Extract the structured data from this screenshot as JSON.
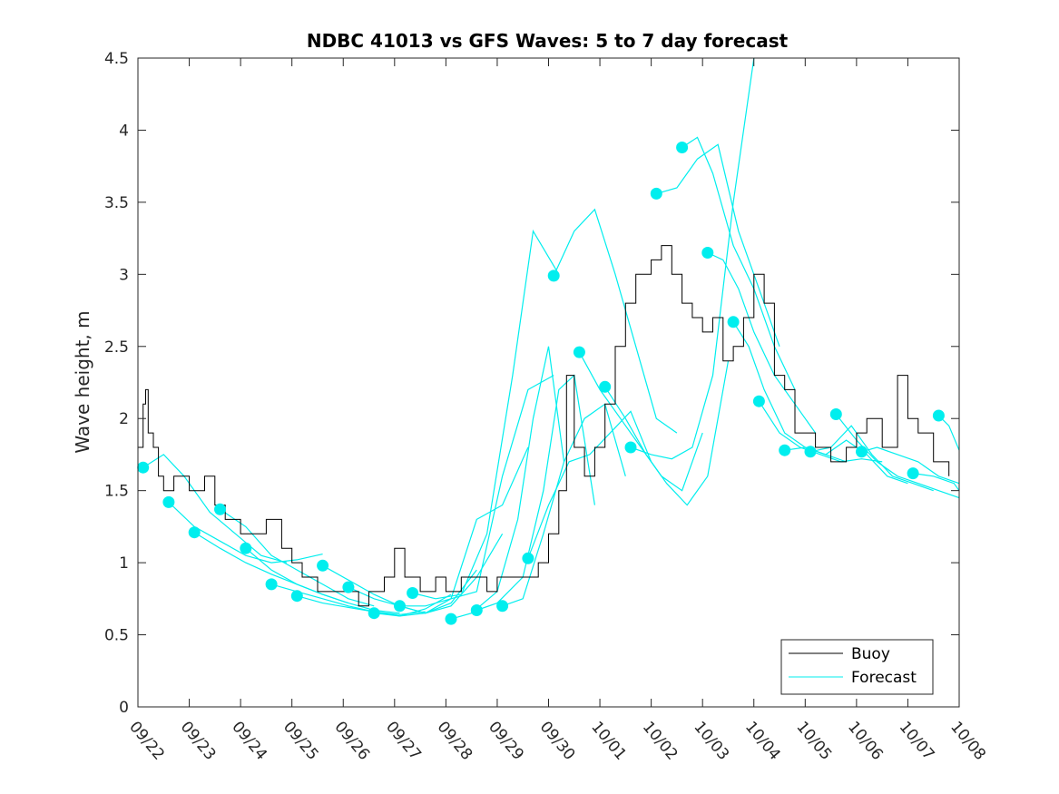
{
  "chart_data": {
    "type": "line",
    "title": "NDBC 41013 vs GFS Waves: 5 to 7 day forecast",
    "xlabel": "",
    "ylabel": "Wave height, m",
    "xlim": [
      0,
      16
    ],
    "ylim": [
      0,
      4.5
    ],
    "x_ticks": [
      "09/22",
      "09/23",
      "09/24",
      "09/25",
      "09/26",
      "09/27",
      "09/28",
      "09/29",
      "09/30",
      "10/01",
      "10/02",
      "10/03",
      "10/04",
      "10/05",
      "10/06",
      "10/07",
      "10/08"
    ],
    "y_ticks": [
      "0",
      "0.5",
      "1",
      "1.5",
      "2",
      "2.5",
      "3",
      "3.5",
      "4",
      "4.5"
    ],
    "legend": {
      "placement": "bottom-right",
      "entries": [
        "Buoy",
        "Forecast"
      ]
    },
    "colors": {
      "buoy": "#000000",
      "forecast": "#00eeee",
      "axis": "#262626"
    },
    "buoy": {
      "name": "Buoy",
      "x": [
        0,
        0.1,
        0.15,
        0.2,
        0.3,
        0.4,
        0.5,
        0.7,
        1.0,
        1.3,
        1.5,
        1.7,
        2.0,
        2.2,
        2.5,
        2.8,
        3.0,
        3.2,
        3.5,
        3.8,
        4.0,
        4.3,
        4.5,
        4.8,
        5.0,
        5.2,
        5.5,
        5.8,
        6.0,
        6.3,
        6.5,
        6.8,
        7.0,
        7.3,
        7.5,
        7.8,
        8.0,
        8.2,
        8.35,
        8.5,
        8.7,
        8.9,
        9.1,
        9.3,
        9.5,
        9.7,
        10.0,
        10.2,
        10.4,
        10.6,
        10.8,
        11.0,
        11.2,
        11.4,
        11.6,
        11.8,
        12.0,
        12.2,
        12.4,
        12.6,
        12.8,
        13.0,
        13.2,
        13.5,
        13.8,
        14.0,
        14.2,
        14.5,
        14.8,
        15.0,
        15.2,
        15.5,
        15.8
      ],
      "y": [
        1.8,
        2.1,
        2.2,
        1.9,
        1.8,
        1.6,
        1.5,
        1.6,
        1.5,
        1.6,
        1.4,
        1.3,
        1.2,
        1.2,
        1.3,
        1.1,
        1.0,
        0.9,
        0.8,
        0.8,
        0.8,
        0.7,
        0.8,
        0.9,
        1.1,
        0.9,
        0.8,
        0.9,
        0.8,
        0.9,
        0.9,
        0.8,
        0.9,
        0.9,
        0.9,
        1.0,
        1.2,
        1.5,
        2.3,
        1.8,
        1.6,
        1.8,
        2.1,
        2.5,
        2.8,
        3.0,
        3.1,
        3.2,
        3.0,
        2.8,
        2.7,
        2.6,
        2.7,
        2.4,
        2.5,
        2.7,
        3.0,
        2.8,
        2.3,
        2.2,
        1.9,
        1.9,
        1.8,
        1.7,
        1.8,
        1.9,
        2.0,
        1.8,
        2.3,
        2.0,
        1.9,
        1.7,
        1.6
      ]
    },
    "forecast": {
      "name": "Forecast",
      "runs": [
        {
          "x": [
            0.1,
            0.5,
            0.9,
            1.4,
            1.9,
            2.4,
            2.9
          ],
          "y": [
            1.66,
            1.75,
            1.6,
            1.35,
            1.2,
            1.05,
            1.0
          ]
        },
        {
          "x": [
            0.6,
            1.1,
            1.6,
            2.1,
            2.6,
            3.1,
            3.6
          ],
          "y": [
            1.42,
            1.25,
            1.15,
            1.05,
            1.0,
            1.02,
            1.06
          ]
        },
        {
          "x": [
            1.1,
            1.6,
            2.1,
            2.6,
            3.1,
            3.6,
            4.1
          ],
          "y": [
            1.21,
            1.1,
            1.0,
            0.92,
            0.85,
            0.78,
            0.72
          ]
        },
        {
          "x": [
            1.6,
            2.1,
            2.6,
            3.1,
            3.6,
            4.1,
            4.6
          ],
          "y": [
            1.37,
            1.25,
            1.05,
            0.95,
            0.85,
            0.75,
            0.7
          ]
        },
        {
          "x": [
            2.1,
            2.6,
            3.1,
            3.6,
            4.1,
            4.6,
            5.1
          ],
          "y": [
            1.1,
            0.95,
            0.85,
            0.78,
            0.72,
            0.67,
            0.65
          ]
        },
        {
          "x": [
            2.6,
            3.1,
            3.6,
            4.1,
            4.6,
            5.1,
            5.6
          ],
          "y": [
            0.85,
            0.8,
            0.75,
            0.7,
            0.66,
            0.64,
            0.66
          ]
        },
        {
          "x": [
            3.1,
            3.6,
            4.1,
            4.6,
            5.1,
            5.6,
            6.1
          ],
          "y": [
            0.77,
            0.72,
            0.69,
            0.66,
            0.63,
            0.68,
            0.78
          ]
        },
        {
          "x": [
            3.6,
            4.1,
            4.6,
            5.1,
            5.6,
            6.1,
            6.6
          ],
          "y": [
            0.98,
            0.88,
            0.78,
            0.7,
            0.65,
            0.72,
            0.95
          ]
        },
        {
          "x": [
            4.1,
            4.6,
            5.1,
            5.6,
            6.1,
            6.6,
            7.1
          ],
          "y": [
            0.83,
            0.75,
            0.7,
            0.65,
            0.7,
            0.9,
            1.2
          ]
        },
        {
          "x": [
            4.6,
            5.1,
            5.6,
            6.1,
            6.6,
            7.1,
            7.6
          ],
          "y": [
            0.65,
            0.63,
            0.65,
            0.75,
            1.3,
            1.4,
            1.8
          ]
        },
        {
          "x": [
            5.1,
            5.6,
            6.1,
            6.6,
            7.1,
            7.6,
            8.1
          ],
          "y": [
            0.7,
            0.7,
            0.75,
            0.8,
            1.6,
            2.2,
            2.3
          ]
        },
        {
          "x": [
            5.35,
            5.8,
            6.3,
            6.8,
            7.3,
            7.7,
            8.2
          ],
          "y": [
            0.79,
            0.75,
            0.78,
            1.2,
            2.3,
            3.3,
            3.0
          ]
        },
        {
          "x": [
            6.1,
            6.5,
            7.0,
            7.4,
            7.7,
            8.0,
            8.3
          ],
          "y": [
            0.61,
            0.65,
            0.8,
            1.3,
            2.0,
            2.5,
            1.7
          ]
        },
        {
          "x": [
            6.6,
            7.0,
            7.5,
            7.9,
            8.2,
            8.5,
            8.9
          ],
          "y": [
            0.67,
            0.72,
            0.9,
            1.5,
            2.2,
            2.3,
            1.4
          ]
        },
        {
          "x": [
            7.1,
            7.5,
            7.9,
            8.3,
            8.7,
            9.1,
            9.5
          ],
          "y": [
            0.7,
            0.75,
            1.2,
            1.7,
            2.0,
            2.1,
            1.6
          ]
        },
        {
          "x": [
            7.6,
            8.0,
            8.4,
            8.8,
            9.2,
            9.6,
            10.0
          ],
          "y": [
            1.03,
            1.4,
            1.7,
            1.75,
            1.9,
            2.05,
            1.7
          ]
        },
        {
          "x": [
            8.1,
            8.5,
            8.9,
            9.3,
            9.7,
            10.1,
            10.5
          ],
          "y": [
            2.99,
            3.3,
            3.45,
            3.0,
            2.5,
            2.0,
            1.9
          ]
        },
        {
          "x": [
            8.6,
            9.0,
            9.4,
            9.8,
            10.2,
            10.6,
            11.0
          ],
          "y": [
            2.46,
            2.2,
            2.0,
            1.8,
            1.6,
            1.5,
            1.9
          ]
        },
        {
          "x": [
            9.1,
            9.5,
            9.9,
            10.3,
            10.7,
            11.1,
            11.5
          ],
          "y": [
            2.22,
            2.0,
            1.75,
            1.55,
            1.4,
            1.6,
            2.4
          ]
        },
        {
          "x": [
            9.6,
            10.0,
            10.4,
            10.8,
            11.2,
            11.6,
            12.0
          ],
          "y": [
            1.8,
            1.75,
            1.72,
            1.8,
            2.3,
            3.5,
            4.5
          ]
        },
        {
          "x": [
            10.1,
            10.5,
            10.9,
            11.3,
            11.7,
            12.1,
            12.5
          ],
          "y": [
            3.56,
            3.6,
            3.8,
            3.9,
            3.3,
            2.9,
            2.5
          ]
        },
        {
          "x": [
            10.6,
            10.9,
            11.2,
            11.6,
            12.0,
            12.4,
            12.8
          ],
          "y": [
            3.88,
            3.95,
            3.7,
            3.2,
            2.9,
            2.5,
            2.2
          ]
        },
        {
          "x": [
            11.1,
            11.4,
            11.7,
            12.0,
            12.4,
            12.8,
            13.2
          ],
          "y": [
            3.15,
            3.1,
            2.9,
            2.6,
            2.3,
            2.1,
            1.9
          ]
        },
        {
          "x": [
            11.6,
            11.9,
            12.2,
            12.6,
            13.0,
            13.4,
            13.8
          ],
          "y": [
            2.67,
            2.5,
            2.2,
            1.9,
            1.8,
            1.75,
            1.7
          ]
        },
        {
          "x": [
            12.1,
            12.5,
            12.9,
            13.3,
            13.7,
            14.1,
            14.5
          ],
          "y": [
            2.12,
            1.9,
            1.8,
            1.75,
            1.7,
            1.72,
            1.7
          ]
        },
        {
          "x": [
            12.6,
            13.0,
            13.4,
            13.8,
            14.2,
            14.6,
            15.0
          ],
          "y": [
            1.78,
            1.8,
            1.75,
            1.85,
            1.75,
            1.6,
            1.55
          ]
        },
        {
          "x": [
            13.1,
            13.5,
            13.9,
            14.3,
            14.7,
            15.1,
            15.5
          ],
          "y": [
            1.77,
            1.8,
            1.95,
            1.75,
            1.6,
            1.55,
            1.5
          ]
        },
        {
          "x": [
            13.6,
            14.0,
            14.4,
            14.8,
            15.2,
            15.6,
            16.0
          ],
          "y": [
            2.03,
            1.85,
            1.7,
            1.6,
            1.55,
            1.5,
            1.45
          ]
        },
        {
          "x": [
            14.1,
            14.4,
            14.8,
            15.2,
            15.6,
            16.0
          ],
          "y": [
            1.77,
            1.8,
            1.75,
            1.7,
            1.6,
            1.55
          ]
        },
        {
          "x": [
            15.1,
            15.5,
            15.9,
            16.0
          ],
          "y": [
            1.62,
            1.6,
            1.55,
            1.5
          ]
        },
        {
          "x": [
            15.6,
            15.8,
            16.0
          ],
          "y": [
            2.02,
            1.95,
            1.78
          ]
        }
      ],
      "markers": {
        "x": [
          0.1,
          0.6,
          1.1,
          1.6,
          2.1,
          2.6,
          3.1,
          3.6,
          4.1,
          4.6,
          5.1,
          5.35,
          6.1,
          6.6,
          7.1,
          7.6,
          8.1,
          8.6,
          9.1,
          9.6,
          10.1,
          10.6,
          11.1,
          11.6,
          12.1,
          12.6,
          13.1,
          13.6,
          14.1,
          15.1,
          15.6
        ],
        "y": [
          1.66,
          1.42,
          1.21,
          1.37,
          1.1,
          0.85,
          0.77,
          0.98,
          0.83,
          0.65,
          0.7,
          0.79,
          0.61,
          0.67,
          0.7,
          1.03,
          2.99,
          2.46,
          2.22,
          1.8,
          3.56,
          3.88,
          3.15,
          2.67,
          2.12,
          1.78,
          1.77,
          2.03,
          1.77,
          1.62,
          2.02
        ]
      }
    }
  }
}
